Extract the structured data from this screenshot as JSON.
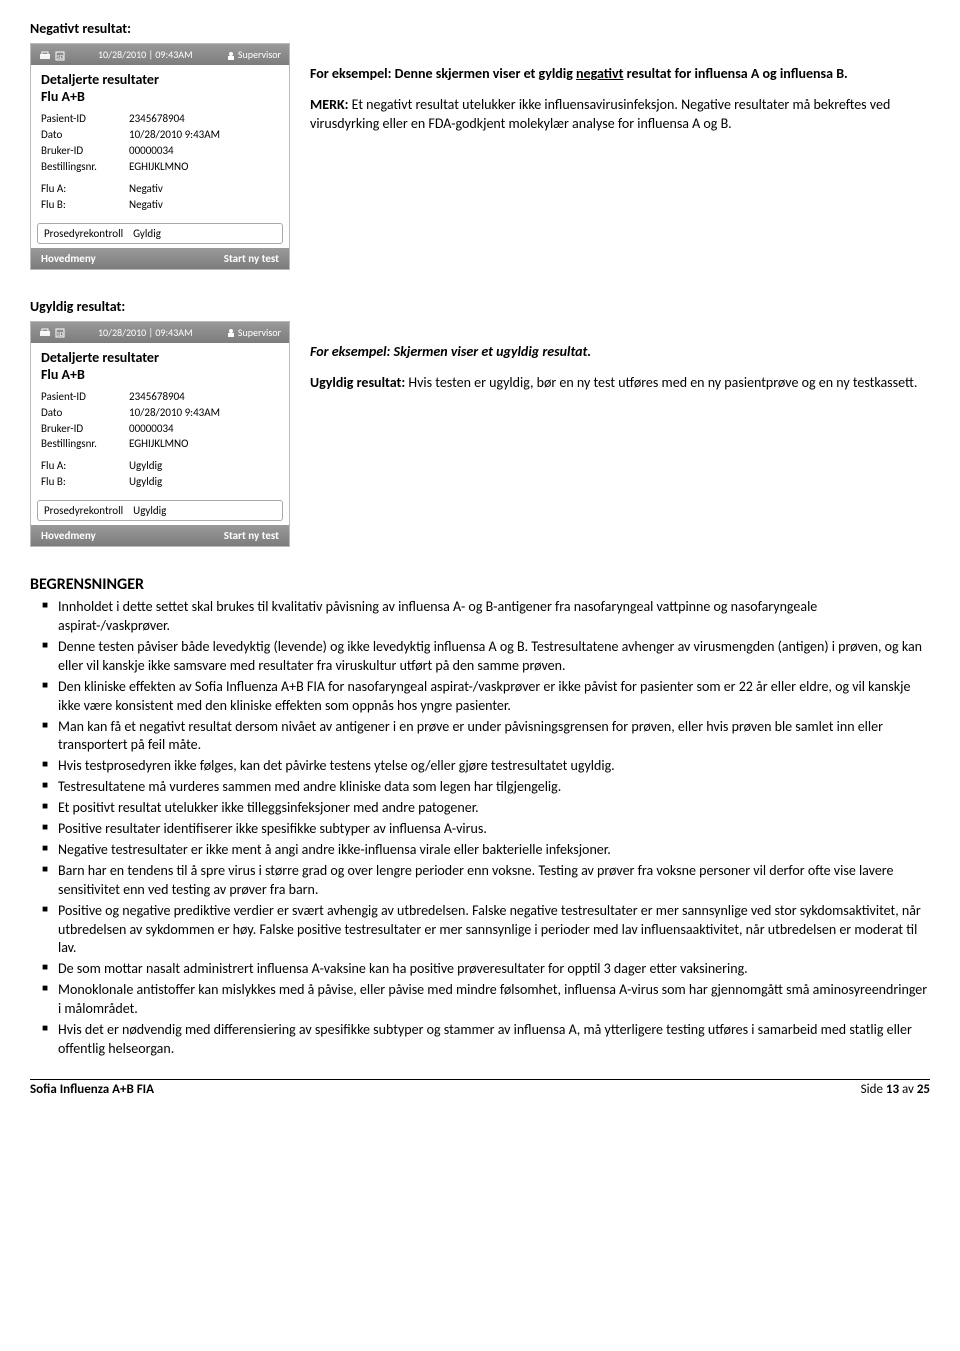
{
  "negative": {
    "heading": "Negativt resultat:",
    "screen": {
      "timestamp": "10/28/2010 | 09:43AM",
      "supervisor": "Supervisor",
      "title1": "Detaljerte resultater",
      "title2": "Flu A+B",
      "rows": {
        "pasient_k": "Pasient-ID",
        "pasient_v": "2345678904",
        "dato_k": "Dato",
        "dato_v": "10/28/2010  9:43AM",
        "bruker_k": "Bruker-ID",
        "bruker_v": "00000034",
        "bestill_k": "Bestillingsnr.",
        "bestill_v": "EGHIJKLMNO",
        "flua_k": "Flu A:",
        "flua_v": "Negativ",
        "flub_k": "Flu B:",
        "flub_v": "Negativ"
      },
      "proc_k": "Prosedyrekontroll",
      "proc_v": "Gyldig",
      "btn_left": "Hovedmeny",
      "btn_right": "Start ny test"
    },
    "explain": {
      "p1_intro": "For eksempel: Denne skjermen viser et gyldig ",
      "p1_underlined": "negativt",
      "p1_rest": " resultat for influensa A og influensa B.",
      "p2_bold": "MERK: ",
      "p2_rest": "Et negativt resultat utelukker ikke influensavirusinfeksjon. Negative resultater må bekreftes ved virusdyrking eller en FDA-godkjent molekylær analyse for influensa A og B."
    }
  },
  "invalid": {
    "heading": "Ugyldig resultat:",
    "screen": {
      "timestamp": "10/28/2010 | 09:43AM",
      "supervisor": "Supervisor",
      "title1": "Detaljerte resultater",
      "title2": "Flu A+B",
      "rows": {
        "pasient_k": "Pasient-ID",
        "pasient_v": "2345678904",
        "dato_k": "Dato",
        "dato_v": "10/28/2010  9:43AM",
        "bruker_k": "Bruker-ID",
        "bruker_v": "00000034",
        "bestill_k": "Bestillingsnr.",
        "bestill_v": "EGHIJKLMNO",
        "flua_k": "Flu A:",
        "flua_v": "Ugyldig",
        "flub_k": "Flu B:",
        "flub_v": "Ugyldig"
      },
      "proc_k": "Prosedyrekontroll",
      "proc_v": "Ugyldig",
      "btn_left": "Hovedmeny",
      "btn_right": "Start ny test"
    },
    "explain": {
      "p1": "For eksempel: Skjermen viser et ugyldig resultat.",
      "p2_bold": "Ugyldig resultat: ",
      "p2_rest": "Hvis testen er ugyldig, bør en ny test utføres med en ny pasientprøve og en ny testkassett."
    }
  },
  "limits": {
    "title": "BEGRENSNINGER",
    "items": [
      "Innholdet i dette settet skal brukes til kvalitativ påvisning av influensa A- og B-antigener fra nasofaryngeal vattpinne og nasofaryngeale aspirat-/vaskprøver.",
      "Denne testen påviser både levedyktig (levende) og ikke levedyktig influensa A og B. Testresultatene avhenger av virusmengden (antigen) i prøven, og kan eller vil kanskje ikke samsvare med resultater fra viruskultur utført på den samme prøven.",
      "Den kliniske effekten av Sofia Influenza A+B FIA for nasofaryngeal aspirat-/vaskprøver er ikke påvist for pasienter som er 22 år eller eldre, og vil kanskje ikke være konsistent med den kliniske effekten som oppnås hos yngre pasienter.",
      "Man kan få et negativt resultat dersom nivået av antigener i en prøve er under påvisningsgrensen for prøven, eller hvis prøven ble samlet inn eller transportert på feil måte.",
      "Hvis testprosedyren ikke følges, kan det påvirke testens ytelse og/eller gjøre testresultatet ugyldig.",
      "Testresultatene må vurderes sammen med andre kliniske data som legen har tilgjengelig.",
      "Et positivt resultat utelukker ikke tilleggsinfeksjoner med andre patogener.",
      "Positive resultater identifiserer ikke spesifikke subtyper av influensa A-virus.",
      "Negative testresultater er ikke ment å angi andre ikke-influensa virale eller bakterielle infeksjoner.",
      "Barn har en tendens til å spre virus i større grad og over lengre perioder enn voksne. Testing av prøver fra voksne personer vil derfor ofte vise lavere sensitivitet enn ved testing av prøver fra barn.",
      "Positive og negative prediktive verdier er svært avhengig av utbredelsen. Falske negative testresultater er mer sannsynlige ved stor sykdomsaktivitet, når utbredelsen av sykdommen er høy. Falske positive testresultater er mer sannsynlige i perioder med lav influensaaktivitet, når utbredelsen er moderat til lav.",
      "De som mottar nasalt administrert influensa A-vaksine kan ha positive prøveresultater for opptil 3 dager etter vaksinering.",
      "Monoklonale antistoffer kan mislykkes med å påvise, eller påvise med mindre følsomhet, influensa A-virus som har gjennomgått små aminosyreendringer i målområdet.",
      "Hvis det er nødvendig med differensiering av spesifikke subtyper og stammer av influensa A, må ytterligere testing utføres i samarbeid med statlig eller offentlig helseorgan."
    ]
  },
  "footer": {
    "left": "Sofia Influenza A+B FIA",
    "side": "Side ",
    "page": "13",
    "av": " av ",
    "total": "25"
  }
}
